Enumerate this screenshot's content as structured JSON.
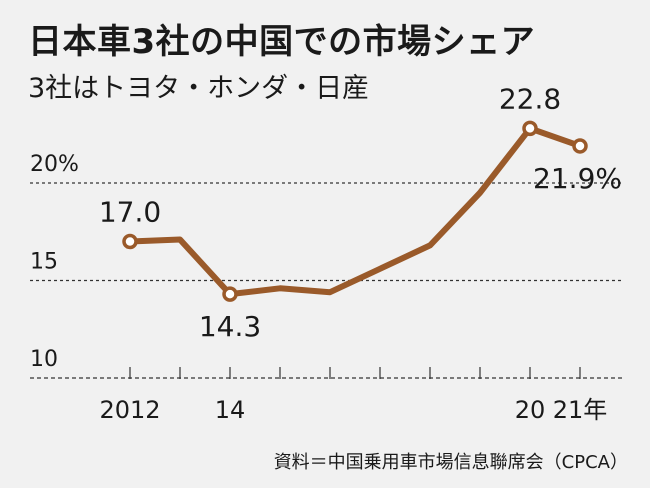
{
  "chart_data": {
    "type": "line",
    "title": "日本車3社の中国での市場シェア",
    "subtitle": "3社はトヨタ・ホンダ・日産",
    "source": "資料＝中国乗用車市場信息聯席会（CPCA）",
    "x": [
      2012,
      2013,
      2014,
      2015,
      2016,
      2017,
      2018,
      2019,
      2020,
      2021
    ],
    "x_tick_labels": [
      {
        "x": 2012,
        "label": "2012"
      },
      {
        "x": 2014,
        "label": "14"
      },
      {
        "x": 2020,
        "label": "20"
      },
      {
        "x": 2021,
        "label": "21年"
      }
    ],
    "y_tick_labels": [
      {
        "y": 10,
        "label": "10"
      },
      {
        "y": 15,
        "label": "15"
      },
      {
        "y": 20,
        "label": "20%"
      }
    ],
    "ylim": [
      10,
      22.8
    ],
    "grid": "horizontal dashed",
    "series": [
      {
        "color": "#9a5a2a",
        "values": [
          17.0,
          17.1,
          14.3,
          14.6,
          14.4,
          15.6,
          16.8,
          19.5,
          22.8,
          21.9
        ]
      }
    ],
    "annotations": [
      {
        "x": 2012,
        "y": 17.0,
        "label": "17.0",
        "position": "above"
      },
      {
        "x": 2014,
        "y": 14.3,
        "label": "14.3",
        "position": "below"
      },
      {
        "x": 2020,
        "y": 22.8,
        "label": "22.8",
        "position": "above"
      },
      {
        "x": 2021,
        "y": 21.9,
        "label": "21.9%",
        "position": "below"
      }
    ],
    "marked_points": [
      2012,
      2014,
      2020,
      2021
    ]
  }
}
